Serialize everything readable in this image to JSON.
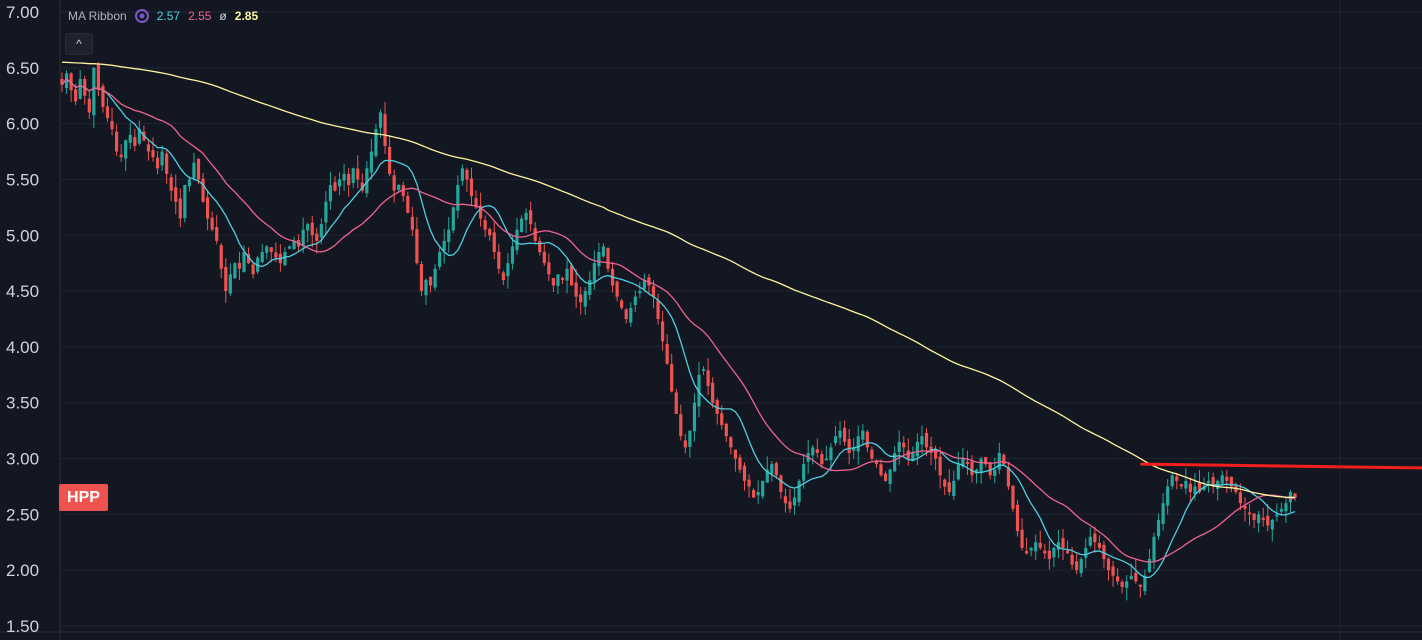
{
  "indicator": {
    "name": "MA Ribbon",
    "values": [
      "2.57",
      "2.55"
    ],
    "avg_symbol": "ø",
    "avg_value": "2.85",
    "colors": [
      "#4dd0e1",
      "#f06292",
      "#fff59d"
    ],
    "icon": "cycle-icon"
  },
  "collapse_button": {
    "label": "^",
    "icon": "chevron-up-icon"
  },
  "ticker": {
    "label": "HPP",
    "color": "#ef5350"
  },
  "colors": {
    "background": "#131722",
    "grid": "#1f2433",
    "candle_up": "#26a69a",
    "candle_down": "#ef5350",
    "resistance": "#f21d1d"
  },
  "chart_data": {
    "type": "candlestick",
    "title": "",
    "ylabel": "",
    "ylim": [
      1.5,
      7.0
    ],
    "yticks": [
      "7.00",
      "6.50",
      "6.00",
      "5.50",
      "5.00",
      "4.50",
      "4.00",
      "3.50",
      "3.00",
      "2.50",
      "2.00",
      "1.50"
    ],
    "grid": true,
    "series": [
      {
        "kind": "close",
        "values": [
          6.35,
          6.45,
          6.3,
          6.2,
          6.4,
          6.25,
          6.1,
          6.5,
          6.3,
          6.15,
          6.05,
          5.95,
          5.75,
          5.7,
          5.85,
          5.9,
          5.8,
          5.95,
          5.85,
          5.75,
          5.7,
          5.6,
          5.75,
          5.55,
          5.4,
          5.3,
          5.15,
          5.45,
          5.5,
          5.65,
          5.5,
          5.3,
          5.15,
          5.05,
          4.95,
          4.7,
          4.5,
          4.65,
          4.75,
          4.7,
          4.85,
          4.75,
          4.65,
          4.8,
          4.85,
          4.9,
          4.85,
          4.8,
          4.75,
          4.85,
          4.9,
          4.95,
          4.9,
          5.05,
          5.1,
          5.0,
          4.95,
          5.1,
          5.3,
          5.45,
          5.4,
          5.5,
          5.55,
          5.45,
          5.6,
          5.5,
          5.4,
          5.6,
          5.75,
          5.95,
          6.1,
          5.8,
          5.55,
          5.4,
          5.45,
          5.35,
          5.2,
          5.05,
          4.75,
          4.5,
          4.6,
          4.55,
          4.7,
          4.85,
          4.95,
          5.05,
          5.25,
          5.45,
          5.6,
          5.5,
          5.35,
          5.25,
          5.15,
          5.05,
          5.0,
          4.85,
          4.7,
          4.6,
          4.75,
          4.9,
          5.05,
          5.15,
          5.2,
          5.1,
          4.95,
          4.85,
          4.75,
          4.65,
          4.55,
          4.65,
          4.6,
          4.7,
          4.55,
          4.45,
          4.4,
          4.5,
          4.6,
          4.75,
          4.85,
          4.9,
          4.7,
          4.55,
          4.45,
          4.35,
          4.25,
          4.35,
          4.45,
          4.5,
          4.6,
          4.55,
          4.45,
          4.25,
          4.05,
          3.85,
          3.6,
          3.4,
          3.2,
          3.1,
          3.25,
          3.5,
          3.75,
          3.8,
          3.65,
          3.5,
          3.4,
          3.3,
          3.2,
          3.1,
          3.0,
          2.9,
          2.8,
          2.75,
          2.65,
          2.7,
          2.8,
          2.9,
          2.95,
          2.85,
          2.7,
          2.6,
          2.55,
          2.65,
          2.8,
          2.95,
          3.05,
          3.1,
          3.05,
          2.95,
          3.0,
          3.1,
          3.2,
          3.25,
          3.15,
          3.05,
          3.1,
          3.2,
          3.25,
          3.1,
          3.0,
          2.95,
          2.85,
          2.8,
          2.9,
          3.05,
          3.15,
          3.1,
          3.0,
          3.05,
          3.15,
          3.2,
          3.1,
          3.05,
          3.0,
          2.85,
          2.75,
          2.7,
          2.8,
          2.95,
          3.0,
          2.95,
          2.85,
          2.9,
          3.0,
          2.95,
          2.85,
          2.9,
          3.05,
          2.95,
          2.75,
          2.55,
          2.35,
          2.2,
          2.15,
          2.2,
          2.25,
          2.2,
          2.15,
          2.1,
          2.2,
          2.25,
          2.2,
          2.15,
          2.05,
          2.0,
          2.1,
          2.2,
          2.3,
          2.25,
          2.2,
          2.1,
          2.0,
          1.95,
          1.9,
          1.85,
          1.9,
          1.95,
          1.9,
          1.85,
          1.95,
          2.1,
          2.3,
          2.45,
          2.6,
          2.75,
          2.85,
          2.8,
          2.75,
          2.8,
          2.7,
          2.75,
          2.7,
          2.75,
          2.8,
          2.75,
          2.8,
          2.85,
          2.8,
          2.75,
          2.7,
          2.6,
          2.55,
          2.5,
          2.45,
          2.5,
          2.45,
          2.4,
          2.45,
          2.5,
          2.55,
          2.6,
          2.7,
          2.65
        ]
      },
      {
        "kind": "ma",
        "name": "",
        "color": "#4dd0e1",
        "period": 10,
        "value": "2.57"
      },
      {
        "kind": "ma",
        "name": "",
        "color": "#f06292",
        "period": 25,
        "value": "2.55"
      },
      {
        "kind": "ma",
        "name": "",
        "color": "#fff59d",
        "period": 120,
        "value": "2.85"
      }
    ],
    "resistance_line": {
      "x": [
        237,
        277
      ],
      "y": [
        2.95,
        2.91
      ]
    }
  }
}
